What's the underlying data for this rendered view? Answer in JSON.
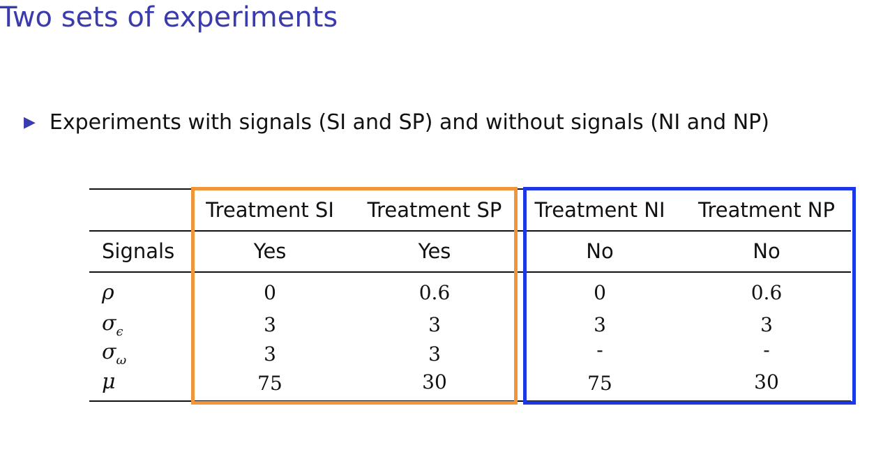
{
  "slide": {
    "title": "Two sets of experiments",
    "bullet": "Experiments with signals (SI and SP) and without signals (NI and NP)"
  },
  "table": {
    "headers": [
      "Treatment SI",
      "Treatment SP",
      "Treatment NI",
      "Treatment NP"
    ],
    "signals": {
      "label": "Signals",
      "values": [
        "Yes",
        "Yes",
        "No",
        "No"
      ]
    },
    "rows": [
      {
        "symbol": "ρ",
        "sub": "",
        "values": [
          "0",
          "0.6",
          "0",
          "0.6"
        ]
      },
      {
        "symbol": "σ",
        "sub": "ϵ",
        "values": [
          "3",
          "3",
          "3",
          "3"
        ]
      },
      {
        "symbol": "σ",
        "sub": "ω",
        "values": [
          "3",
          "3",
          "-",
          "-"
        ]
      },
      {
        "symbol": "μ",
        "sub": "",
        "values": [
          "75",
          "30",
          "75",
          "30"
        ]
      }
    ]
  },
  "colors": {
    "title": "#3b3bb0",
    "signals_box": "#f0963a",
    "no_signals_box": "#1a37e8"
  }
}
